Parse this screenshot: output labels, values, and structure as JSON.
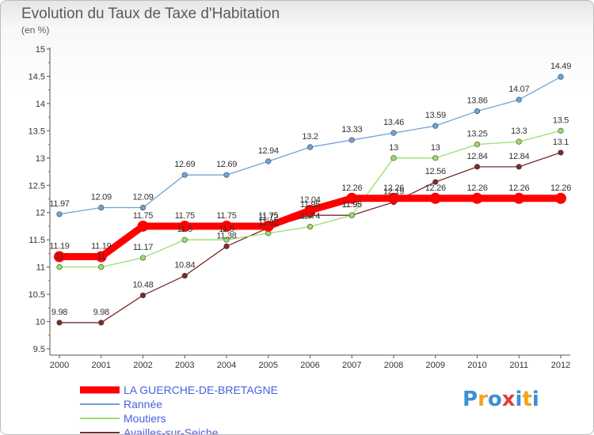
{
  "chart_data": {
    "type": "line",
    "title": "Evolution du Taux de Taxe d'Habitation",
    "subtitle": "(en %)",
    "x": [
      "2000",
      "2001",
      "2002",
      "2003",
      "2004",
      "2005",
      "2006",
      "2007",
      "2008",
      "2009",
      "2010",
      "2011",
      "2012"
    ],
    "ylim": [
      9.5,
      15
    ],
    "yticks": [
      9.5,
      10,
      10.5,
      11,
      11.5,
      12,
      12.5,
      13,
      13.5,
      14,
      14.5,
      15
    ],
    "ytick_labels": [
      "9.5",
      "10",
      "10.5",
      "11",
      "11.5",
      "12",
      "12.5",
      "13",
      "13.5",
      "14",
      "14.5",
      "15"
    ],
    "grid": false,
    "series": [
      {
        "name": "LA GUERCHE-DE-BRETAGNE",
        "color": "#ff0000",
        "emphasis": true,
        "values": [
          11.19,
          11.19,
          11.75,
          11.75,
          11.75,
          11.75,
          12.04,
          12.26,
          12.26,
          12.26,
          12.26,
          12.26,
          12.26
        ],
        "labels": [
          "11.19",
          "11.19",
          "11.75",
          "11.75",
          "11.75",
          "11.75",
          "12.04",
          "12.26",
          "12.26",
          "12.26",
          "12.26",
          "12.26",
          "12.26"
        ]
      },
      {
        "name": "Rannée",
        "color": "#6fa3d6",
        "values": [
          11.97,
          12.09,
          12.09,
          12.69,
          12.69,
          12.94,
          13.2,
          13.33,
          13.46,
          13.59,
          13.86,
          14.07,
          14.49
        ],
        "labels": [
          "11.97",
          "12.09",
          "12.09",
          "12.69",
          "12.69",
          "12.94",
          "13.2",
          "13.33",
          "13.46",
          "13.59",
          "13.86",
          "14.07",
          "14.49"
        ]
      },
      {
        "name": "Moutiers",
        "color": "#99dd66",
        "values": [
          11,
          11,
          11.17,
          11.5,
          11.5,
          11.62,
          11.74,
          11.95,
          13,
          13,
          13.25,
          13.3,
          13.5
        ],
        "labels": [
          "11",
          "11",
          "11.17",
          "11.5",
          "11.5",
          "11.62",
          "11.74",
          "11.95",
          "13",
          "13",
          "13.25",
          "13.3",
          "13.5"
        ]
      },
      {
        "name": "Availles-sur-Seiche",
        "color": "#7a2a2a",
        "values": [
          9.98,
          9.98,
          10.48,
          10.84,
          11.38,
          11.72,
          11.95,
          11.95,
          12.19,
          12.56,
          12.84,
          12.84,
          13.1
        ],
        "labels": [
          "9.98",
          "9.98",
          "10.48",
          "10.84",
          "11.38",
          "11.72",
          "11.95",
          "11.95",
          "12.19",
          "12.56",
          "12.84",
          "12.84",
          "13.1"
        ]
      }
    ],
    "legend_position": "bottom-left"
  },
  "logo": {
    "letters": [
      "P",
      "r",
      "o",
      "x",
      "i",
      "t",
      "i"
    ],
    "colors": [
      "#3b8fd6",
      "#f2a31b",
      "#3b8fd6",
      "#e23d3d",
      "#3b8fd6",
      "#f2a31b",
      "#3b8fd6"
    ]
  }
}
